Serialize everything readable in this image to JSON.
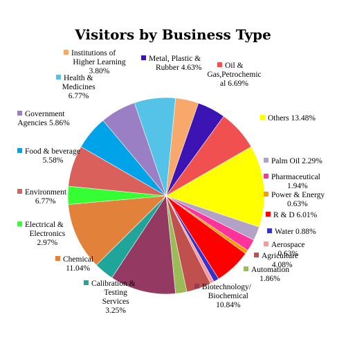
{
  "chart_data": {
    "type": "pie",
    "title": "Visitors by Business Type",
    "start_angle_deg": -30,
    "direction": "clockwise",
    "legend": "none",
    "slices": [
      {
        "label": "Others",
        "value": 13.48,
        "label_text": "Others 13.48%",
        "color": "#ffff00"
      },
      {
        "label": "Palm Oil",
        "value": 2.29,
        "label_text": "Palm Oil 2.29%",
        "color": "#b3a2c7"
      },
      {
        "label": "Pharmaceutical",
        "value": 1.94,
        "label_text": "Pharmaceutical 1.94%",
        "color": "#ff3399"
      },
      {
        "label": "Power & Energy",
        "value": 0.63,
        "label_text": "Power & Energy 0.63%",
        "color": "#ff9900"
      },
      {
        "label": "R & D",
        "value": 6.01,
        "label_text": "R & D 6.01%",
        "color": "#ff0000"
      },
      {
        "label": "Water",
        "value": 0.88,
        "label_text": "Water 0.88%",
        "color": "#3333cc"
      },
      {
        "label": "Aerospace",
        "value": 0.63,
        "label_text": "Aerospace 0.63%",
        "color": "#ff9999"
      },
      {
        "label": "Agriculture",
        "value": 4.08,
        "label_text": "Agriculture 4.08%",
        "color": "#c0504d"
      },
      {
        "label": "Automation",
        "value": 1.86,
        "label_text": "Automation 1.86%",
        "color": "#9bbb59"
      },
      {
        "label": "Biotechnology/ Biochemical",
        "value": 10.84,
        "label_text": "Biotechnology/ Biochemical 10.84%",
        "color": "#943a62"
      },
      {
        "label": "Calibration & Testing Services",
        "value": 3.25,
        "label_text": "Calibration & Testing Services 3.25%",
        "color": "#1fa59a"
      },
      {
        "label": "Chemical",
        "value": 11.04,
        "label_text": "Chemical 11.04%",
        "color": "#e2813a"
      },
      {
        "label": "Electrical & Electronics",
        "value": 2.97,
        "label_text": "Electrical & Electronics 2.97%",
        "color": "#33ff33"
      },
      {
        "label": "Environment",
        "value": 6.77,
        "label_text": "Environment 6.77%",
        "color": "#d9605b"
      },
      {
        "label": "Food & beverage",
        "value": 5.58,
        "label_text": "Food & beverage 5.58%",
        "color": "#00a2e8"
      },
      {
        "label": "Government Agencies",
        "value": 5.86,
        "label_text": "Government Agencies 5.86%",
        "color": "#9b7fc4"
      },
      {
        "label": "Health & Medicines",
        "value": 6.77,
        "label_text": "Health & Medicines 6.77%",
        "color": "#55c3e8"
      },
      {
        "label": "Institutions of Higher Learning",
        "value": 3.8,
        "label_text": "Institutions of Higher Learning 3.80%",
        "color": "#f8a86a"
      },
      {
        "label": "Metal, Plastic & Rubber",
        "value": 4.63,
        "label_text": "Metal, Plastic & Rubber 4.63%",
        "color": "#3c14b4"
      },
      {
        "label": "Oil & Gas,Petrochemical",
        "value": 6.69,
        "label_text": "Oil & Gas,Petrochemical 6.69%",
        "color": "#f05050"
      }
    ],
    "labels": [
      {
        "lines": [
          "Others 13.48%"
        ]
      },
      {
        "lines": [
          "Palm Oil 2.29%"
        ]
      },
      {
        "lines": [
          "Pharmaceutical",
          "1.94%"
        ]
      },
      {
        "lines": [
          "Power & Energy",
          "0.63%"
        ]
      },
      {
        "lines": [
          "R & D 6.01%"
        ]
      },
      {
        "lines": [
          "Water 0.88%"
        ]
      },
      {
        "lines": [
          "Aerospace",
          "0.63%"
        ]
      },
      {
        "lines": [
          "Agriculture",
          "4.08%"
        ]
      },
      {
        "lines": [
          "Automation",
          "1.86%"
        ]
      },
      {
        "lines": [
          "Biotechnology/",
          "Biochemical",
          "10.84%"
        ]
      },
      {
        "lines": [
          "Calibration &",
          "Testing",
          "Services",
          "3.25%"
        ]
      },
      {
        "lines": [
          "Chemical",
          "11.04%"
        ]
      },
      {
        "lines": [
          "Electrical &",
          "Electronics",
          "2.97%"
        ]
      },
      {
        "lines": [
          "Environment",
          "6.77%"
        ]
      },
      {
        "lines": [
          "Food & beverage",
          "5.58%"
        ]
      },
      {
        "lines": [
          "Government",
          "Agencies 5.86%"
        ]
      },
      {
        "lines": [
          "Health &",
          "Medicines",
          "6.77%"
        ]
      },
      {
        "lines": [
          "Institutions of",
          "Higher Learning",
          "3.80%"
        ]
      },
      {
        "lines": [
          "Metal, Plastic &",
          "Rubber 4.63%"
        ]
      },
      {
        "lines": [
          "Oil &",
          "Gas,Petrochemic",
          "al 6.69%"
        ]
      }
    ]
  }
}
